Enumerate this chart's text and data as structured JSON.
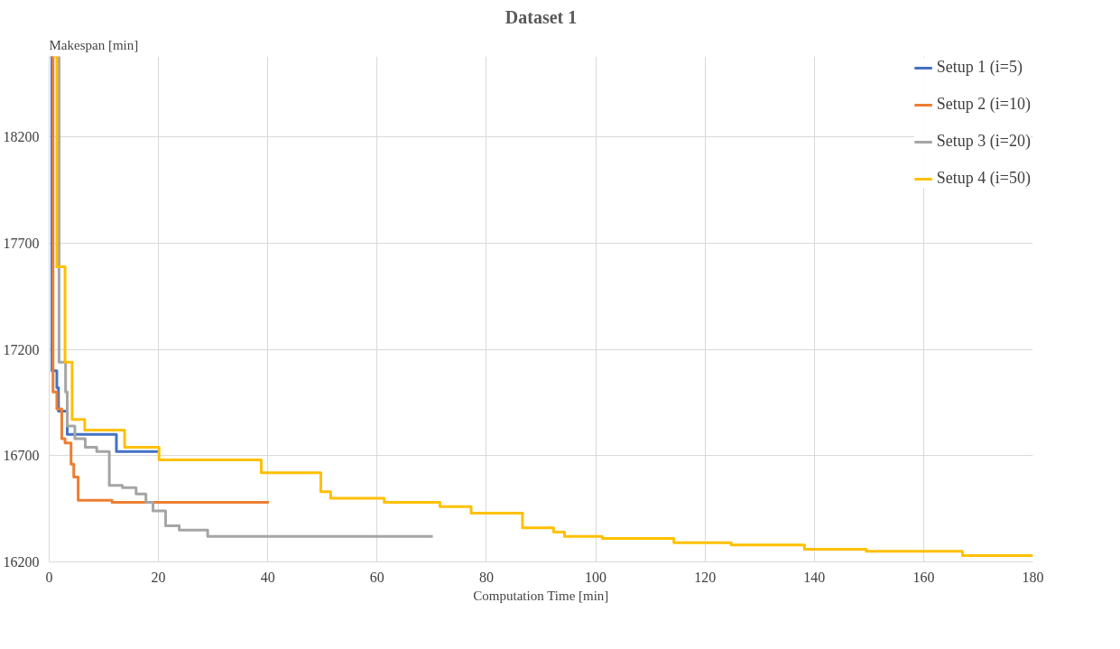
{
  "chart_data": {
    "type": "step",
    "title": "Dataset 1",
    "xlabel": "Computation Time [min]",
    "ylabel": "Makespan [min]",
    "xlim": [
      0,
      180
    ],
    "xticks": [
      0,
      20,
      40,
      60,
      80,
      100,
      120,
      140,
      160,
      180
    ],
    "ylim": [
      16200,
      18580
    ],
    "yticks": [
      16200,
      16700,
      17200,
      17700,
      18200
    ],
    "grid": true,
    "legend": "top right",
    "line_style": "solid",
    "marker": "none",
    "series": [
      {
        "name": "Setup 1 (i=5)",
        "color": "#4472c4",
        "x": [
          0.2,
          0.5,
          1.4,
          1.7,
          3.3,
          12.3,
          20
        ],
        "values": [
          18580,
          17100,
          17020,
          16910,
          16800,
          16720,
          16720
        ]
      },
      {
        "name": "Setup 2 (i=10)",
        "color": "#ed7d31",
        "x": [
          0.3,
          0.7,
          1.4,
          2.3,
          2.9,
          4.0,
          4.5,
          5.3,
          11.5,
          40.2
        ],
        "values": [
          18580,
          17000,
          16920,
          16780,
          16760,
          16660,
          16600,
          16490,
          16480,
          16480
        ]
      },
      {
        "name": "Setup 3 (i=20)",
        "color": "#a5a5a5",
        "x": [
          1.3,
          1.8,
          3.0,
          3.3,
          4.7,
          6.6,
          8.7,
          11.0,
          13.4,
          15.9,
          17.7,
          19.0,
          21.3,
          23.8,
          29.0,
          70.2
        ],
        "values": [
          18580,
          17140,
          17000,
          16840,
          16780,
          16740,
          16720,
          16560,
          16550,
          16520,
          16480,
          16440,
          16370,
          16350,
          16320,
          16320
        ]
      },
      {
        "name": "Setup 4 (i=50)",
        "color": "#ffc000",
        "x": [
          0.7,
          1.4,
          2.9,
          4.2,
          6.5,
          13.8,
          20.1,
          38.8,
          49.7,
          51.5,
          61.3,
          71.5,
          77.2,
          86.6,
          92.3,
          94.3,
          101.2,
          114.3,
          124.8,
          138.2,
          149.5,
          167.1,
          180
        ],
        "values": [
          18580,
          17590,
          17140,
          16870,
          16820,
          16740,
          16680,
          16620,
          16530,
          16500,
          16480,
          16460,
          16430,
          16360,
          16340,
          16320,
          16310,
          16290,
          16280,
          16260,
          16250,
          16230,
          16230
        ]
      }
    ]
  }
}
